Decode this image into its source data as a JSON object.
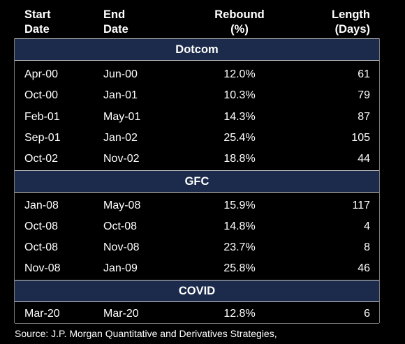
{
  "header": {
    "start": "Start\nDate",
    "end": "End\nDate",
    "rebound": "Rebound\n(%)",
    "length": "Length\n(Days)"
  },
  "sections": [
    {
      "name": "Dotcom",
      "rows": [
        {
          "start": "Apr-00",
          "end": "Jun-00",
          "rebound": "12.0%",
          "length": "61"
        },
        {
          "start": "Oct-00",
          "end": "Jan-01",
          "rebound": "10.3%",
          "length": "79"
        },
        {
          "start": "Feb-01",
          "end": "May-01",
          "rebound": "14.3%",
          "length": "87"
        },
        {
          "start": "Sep-01",
          "end": "Jan-02",
          "rebound": "25.4%",
          "length": "105"
        },
        {
          "start": "Oct-02",
          "end": "Nov-02",
          "rebound": "18.8%",
          "length": "44"
        }
      ]
    },
    {
      "name": "GFC",
      "rows": [
        {
          "start": "Jan-08",
          "end": "May-08",
          "rebound": "15.9%",
          "length": "117"
        },
        {
          "start": "Oct-08",
          "end": "Oct-08",
          "rebound": "14.8%",
          "length": "4"
        },
        {
          "start": "Oct-08",
          "end": "Nov-08",
          "rebound": "23.7%",
          "length": "8"
        },
        {
          "start": "Nov-08",
          "end": "Jan-09",
          "rebound": "25.8%",
          "length": "46"
        }
      ]
    },
    {
      "name": "COVID",
      "rows": [
        {
          "start": "Mar-20",
          "end": "Mar-20",
          "rebound": "12.8%",
          "length": "6"
        }
      ]
    }
  ],
  "source": "Source: J.P. Morgan Quantitative and Derivatives Strategies,",
  "colors": {
    "background": "#000000",
    "section_band": "#1c2b4b",
    "text": "#ffffff"
  }
}
